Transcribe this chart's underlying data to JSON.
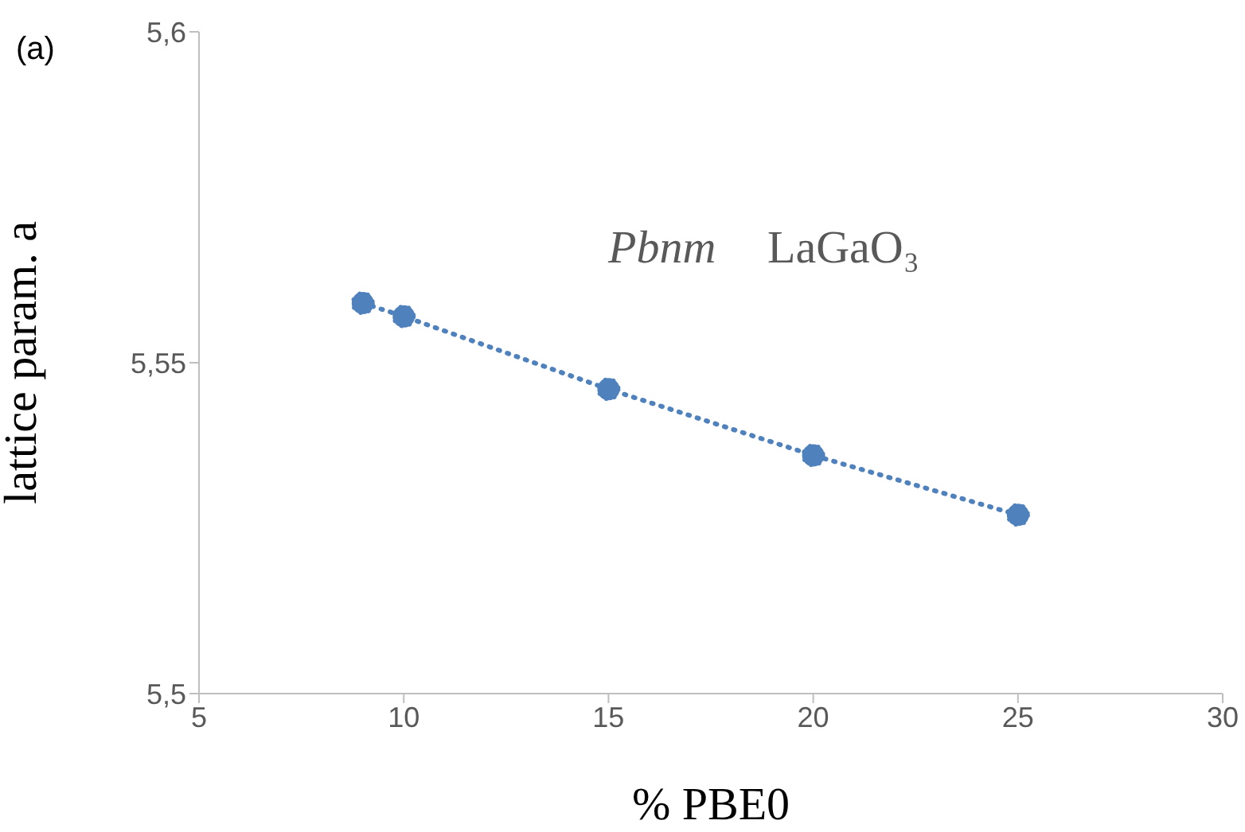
{
  "chart_data": {
    "type": "line",
    "xlabel": "% PBE0",
    "ylabel": "lattice param. a",
    "x": [
      9,
      10,
      15,
      20,
      25
    ],
    "series": [
      {
        "color": "#4f81bd",
        "values": [
          5.559,
          5.557,
          5.546,
          5.536,
          5.527
        ]
      }
    ],
    "xlim": [
      5,
      30
    ],
    "xticks": [
      5,
      10,
      15,
      20,
      25,
      30
    ],
    "ylim": [
      5.5,
      5.6
    ],
    "yticks": [
      {
        "value": 5.5,
        "label": "5,5"
      },
      {
        "value": 5.55,
        "label": "5,55"
      },
      {
        "value": 5.6,
        "label": "5,6"
      }
    ],
    "grid": false,
    "legend": false,
    "marker": "circle",
    "line_style": "dotted",
    "annotations": [
      "(a)",
      "Pbnm",
      "LaGaO₃"
    ]
  }
}
